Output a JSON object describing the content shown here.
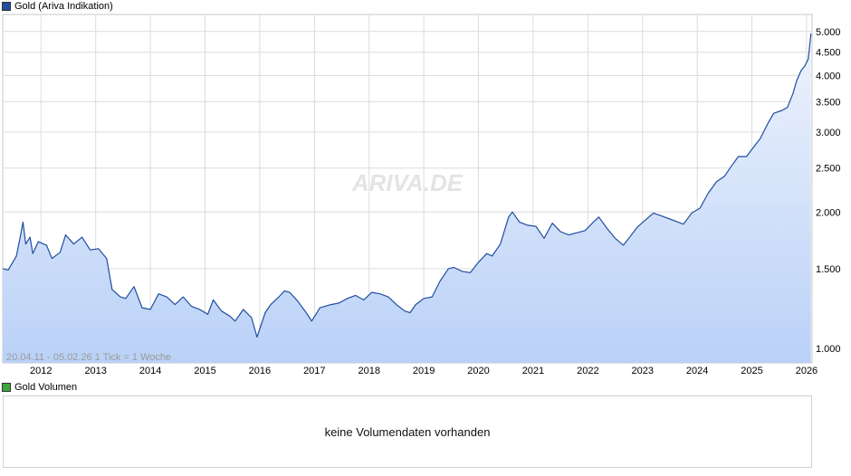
{
  "legend": {
    "price_label": "Gold (Ariva Indikation)",
    "price_color": "#1f4e9e",
    "volume_label": "Gold Volumen",
    "volume_color": "#3ca63c"
  },
  "watermark": "ARIVA.DE",
  "range_info": "20.04.11 - 05.02.26   1 Tick = 1 Woche",
  "volume_panel": {
    "message": "keine Volumendaten vorhanden"
  },
  "chart_data": {
    "type": "area",
    "title": "Gold (Ariva Indikation)",
    "xlabel": "",
    "ylabel": "",
    "y_scale": "log",
    "ylim": [
      930,
      5450
    ],
    "xlim": [
      2011.3,
      2026.1
    ],
    "x_tick_labels": [
      "2012",
      "2013",
      "2014",
      "2015",
      "2016",
      "2017",
      "2018",
      "2019",
      "2020",
      "2021",
      "2022",
      "2023",
      "2024",
      "2025",
      "2026"
    ],
    "y_tick_labels": [
      "1.000",
      "1.500",
      "2.000",
      "2.500",
      "3.000",
      "3.500",
      "4.000",
      "4.500",
      "5.000"
    ],
    "y_tick_values": [
      1000,
      1500,
      2000,
      2500,
      3000,
      3500,
      4000,
      4500,
      5000
    ],
    "grid": true,
    "line_color": "#1f4e9e",
    "fill_color_top": "#eef3fd",
    "fill_color_bottom": "#bad1f7",
    "series": [
      {
        "name": "Gold (Ariva Indikation)",
        "x": [
          2011.3,
          2011.4,
          2011.55,
          2011.62,
          2011.67,
          2011.72,
          2011.8,
          2011.85,
          2011.95,
          2012.1,
          2012.2,
          2012.35,
          2012.45,
          2012.6,
          2012.75,
          2012.9,
          2013.05,
          2013.2,
          2013.3,
          2013.45,
          2013.55,
          2013.7,
          2013.85,
          2014.0,
          2014.15,
          2014.3,
          2014.45,
          2014.6,
          2014.75,
          2014.9,
          2015.05,
          2015.15,
          2015.3,
          2015.45,
          2015.55,
          2015.7,
          2015.85,
          2015.95,
          2016.1,
          2016.2,
          2016.35,
          2016.45,
          2016.55,
          2016.7,
          2016.85,
          2016.95,
          2017.1,
          2017.3,
          2017.45,
          2017.6,
          2017.75,
          2017.9,
          2018.05,
          2018.2,
          2018.35,
          2018.5,
          2018.65,
          2018.75,
          2018.85,
          2019.0,
          2019.15,
          2019.3,
          2019.45,
          2019.55,
          2019.7,
          2019.85,
          2020.0,
          2020.15,
          2020.25,
          2020.4,
          2020.55,
          2020.62,
          2020.75,
          2020.9,
          2021.05,
          2021.2,
          2021.35,
          2021.5,
          2021.65,
          2021.8,
          2021.95,
          2022.1,
          2022.2,
          2022.35,
          2022.5,
          2022.65,
          2022.75,
          2022.9,
          2023.05,
          2023.2,
          2023.35,
          2023.5,
          2023.65,
          2023.75,
          2023.9,
          2024.05,
          2024.2,
          2024.35,
          2024.5,
          2024.6,
          2024.75,
          2024.9,
          2025.05,
          2025.15,
          2025.3,
          2025.4,
          2025.55,
          2025.65,
          2025.75,
          2025.82,
          2025.9,
          2025.97,
          2026.03,
          2026.08
        ],
        "y": [
          1500,
          1490,
          1600,
          1760,
          1900,
          1700,
          1760,
          1620,
          1720,
          1690,
          1580,
          1630,
          1780,
          1700,
          1760,
          1650,
          1660,
          1580,
          1350,
          1300,
          1290,
          1370,
          1230,
          1220,
          1320,
          1300,
          1250,
          1300,
          1240,
          1220,
          1190,
          1280,
          1210,
          1180,
          1150,
          1220,
          1170,
          1060,
          1200,
          1250,
          1300,
          1340,
          1330,
          1270,
          1200,
          1150,
          1230,
          1250,
          1260,
          1290,
          1310,
          1280,
          1330,
          1320,
          1300,
          1250,
          1210,
          1200,
          1250,
          1290,
          1300,
          1410,
          1500,
          1510,
          1480,
          1470,
          1550,
          1620,
          1600,
          1700,
          1950,
          2000,
          1900,
          1870,
          1860,
          1750,
          1890,
          1810,
          1780,
          1800,
          1820,
          1900,
          1950,
          1840,
          1750,
          1690,
          1750,
          1850,
          1920,
          1990,
          1960,
          1930,
          1900,
          1880,
          1990,
          2040,
          2200,
          2330,
          2400,
          2500,
          2650,
          2650,
          2800,
          2900,
          3150,
          3300,
          3350,
          3400,
          3650,
          3900,
          4100,
          4200,
          4350,
          4950
        ]
      }
    ]
  }
}
